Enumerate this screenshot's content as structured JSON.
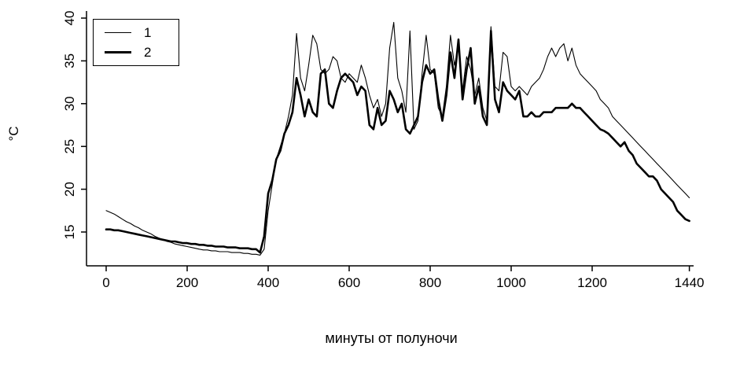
{
  "chart_data": {
    "type": "line",
    "title": "",
    "xlabel": "минуты от полуночи",
    "ylabel": "°C",
    "xticks": [
      0,
      200,
      400,
      600,
      800,
      1000,
      1200,
      1440
    ],
    "yticks": [
      15,
      20,
      25,
      30,
      35,
      40
    ],
    "xlim": [
      0,
      1500
    ],
    "ylim": [
      12,
      40.5
    ],
    "grid": false,
    "line_color": "#000000",
    "legend": {
      "position": "top-left",
      "entries": [
        "1",
        "2"
      ]
    },
    "x": [
      0,
      10,
      20,
      30,
      40,
      50,
      60,
      70,
      80,
      90,
      100,
      110,
      120,
      130,
      140,
      150,
      160,
      170,
      180,
      190,
      200,
      210,
      220,
      230,
      240,
      250,
      260,
      270,
      280,
      290,
      300,
      310,
      320,
      330,
      340,
      350,
      360,
      370,
      380,
      390,
      400,
      410,
      420,
      430,
      440,
      450,
      460,
      470,
      480,
      490,
      500,
      510,
      520,
      530,
      540,
      550,
      560,
      570,
      580,
      590,
      600,
      610,
      620,
      630,
      640,
      650,
      660,
      670,
      680,
      690,
      700,
      710,
      720,
      730,
      740,
      750,
      760,
      770,
      780,
      790,
      800,
      810,
      820,
      830,
      840,
      850,
      860,
      870,
      880,
      890,
      900,
      910,
      920,
      930,
      940,
      950,
      960,
      970,
      980,
      990,
      1000,
      1010,
      1020,
      1030,
      1040,
      1050,
      1060,
      1070,
      1080,
      1090,
      1100,
      1110,
      1120,
      1130,
      1140,
      1150,
      1160,
      1170,
      1180,
      1190,
      1200,
      1210,
      1220,
      1230,
      1240,
      1250,
      1260,
      1270,
      1280,
      1290,
      1300,
      1310,
      1320,
      1330,
      1340,
      1350,
      1360,
      1370,
      1380,
      1390,
      1400,
      1410,
      1420,
      1430,
      1440
    ],
    "series": [
      {
        "name": "1",
        "style": "thin",
        "values": [
          17.5,
          17.3,
          17.1,
          16.8,
          16.5,
          16.2,
          16.0,
          15.7,
          15.5,
          15.2,
          15.0,
          14.8,
          14.5,
          14.3,
          14.1,
          13.9,
          13.8,
          13.6,
          13.5,
          13.4,
          13.3,
          13.2,
          13.1,
          13.0,
          12.9,
          12.9,
          12.8,
          12.8,
          12.7,
          12.7,
          12.7,
          12.6,
          12.6,
          12.6,
          12.5,
          12.5,
          12.4,
          12.4,
          12.3,
          13.0,
          17.5,
          20.5,
          23.5,
          25.0,
          26.5,
          28.5,
          31.0,
          38.2,
          33.0,
          31.5,
          34.5,
          38.0,
          37.0,
          34.0,
          33.5,
          34.0,
          35.5,
          35.0,
          33.0,
          32.5,
          33.5,
          33.0,
          32.5,
          34.5,
          33.0,
          31.0,
          29.5,
          30.5,
          28.5,
          30.0,
          36.5,
          39.5,
          33.0,
          31.5,
          29.0,
          38.5,
          27.0,
          28.0,
          33.5,
          38.0,
          34.0,
          33.5,
          29.5,
          28.5,
          32.0,
          38.0,
          34.5,
          36.5,
          31.5,
          35.5,
          34.0,
          31.0,
          33.0,
          29.5,
          28.0,
          39.0,
          32.0,
          31.5,
          36.0,
          35.5,
          32.0,
          31.5,
          32.0,
          31.5,
          31.0,
          32.0,
          32.5,
          33.0,
          34.0,
          35.5,
          36.5,
          35.5,
          36.5,
          37.0,
          35.0,
          36.5,
          34.5,
          33.5,
          33.0,
          32.5,
          32.0,
          31.5,
          30.5,
          30.0,
          29.5,
          28.5,
          28.0,
          27.5,
          27.0,
          26.5,
          26.0,
          25.5,
          25.0,
          24.5,
          24.0,
          23.5,
          23.0,
          22.5,
          22.0,
          21.5,
          21.0,
          20.5,
          20.0,
          19.5,
          19.0
        ]
      },
      {
        "name": "2",
        "style": "thick",
        "values": [
          15.3,
          15.3,
          15.2,
          15.2,
          15.1,
          15.0,
          14.9,
          14.8,
          14.7,
          14.6,
          14.5,
          14.4,
          14.3,
          14.2,
          14.1,
          14.0,
          13.9,
          13.9,
          13.8,
          13.7,
          13.7,
          13.6,
          13.6,
          13.5,
          13.5,
          13.4,
          13.4,
          13.3,
          13.3,
          13.3,
          13.2,
          13.2,
          13.2,
          13.1,
          13.1,
          13.1,
          13.0,
          13.0,
          12.6,
          14.5,
          19.5,
          21.0,
          23.5,
          24.5,
          26.5,
          27.5,
          29.0,
          33.0,
          31.0,
          28.5,
          30.5,
          29.0,
          28.5,
          33.5,
          34.0,
          30.0,
          29.5,
          31.5,
          33.0,
          33.5,
          33.0,
          32.5,
          31.0,
          32.0,
          31.5,
          27.5,
          27.0,
          29.5,
          27.5,
          28.0,
          31.5,
          30.5,
          29.0,
          30.0,
          27.0,
          26.5,
          27.5,
          28.5,
          32.5,
          34.5,
          33.5,
          34.0,
          30.5,
          28.0,
          31.0,
          36.0,
          33.0,
          37.5,
          30.5,
          34.0,
          36.5,
          30.0,
          32.0,
          28.5,
          27.5,
          38.5,
          30.5,
          29.0,
          32.5,
          31.5,
          31.0,
          30.5,
          31.5,
          28.5,
          28.5,
          29.0,
          28.5,
          28.5,
          29.0,
          29.0,
          29.0,
          29.5,
          29.5,
          29.5,
          29.5,
          30.0,
          29.5,
          29.5,
          29.0,
          28.5,
          28.0,
          27.5,
          27.0,
          26.8,
          26.5,
          26.0,
          25.5,
          25.0,
          25.5,
          24.5,
          24.0,
          23.0,
          22.5,
          22.0,
          21.5,
          21.5,
          21.0,
          20.0,
          19.5,
          19.0,
          18.5,
          17.5,
          17.0,
          16.5,
          16.3
        ]
      }
    ]
  }
}
